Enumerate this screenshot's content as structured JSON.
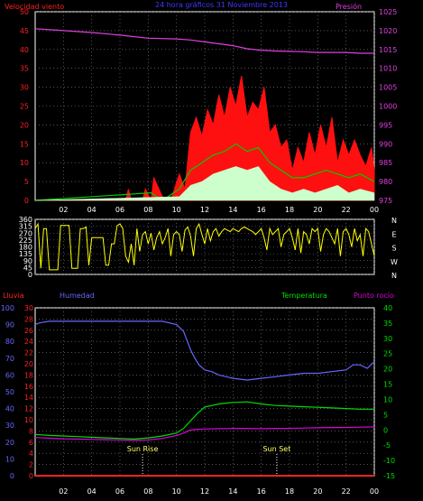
{
  "colors": {
    "wind_label": "#ff2020",
    "pressure_label": "#e040e0",
    "title": "#3b3bff",
    "humidity": "#6666ff",
    "temperature": "#00dd00",
    "dewpoint": "#dd00dd",
    "rain": "#ff2020",
    "direction": "#ffff00",
    "gust": "#ff1010",
    "speed_avg": "#00cc00",
    "speed_min": "#ccffcc",
    "axis": "#ffffff",
    "grid": "#888888"
  },
  "header": {
    "wind_label": "Velocidad viento",
    "title": "24 hora gráficos 31 Noviembre 2013",
    "pressure_label": "Presión"
  },
  "middle_header": {
    "rain_label": "Lluvia",
    "humidity_label": "Humedad",
    "temperature_label": "Temperatura",
    "dewpoint_label": "Punto rocío"
  },
  "x_ticks": [
    "02",
    "04",
    "06",
    "08",
    "10",
    "12",
    "14",
    "16",
    "18",
    "20",
    "22",
    "00"
  ],
  "chart_data": [
    {
      "type": "area",
      "name": "wind-pressure",
      "x_range_hours": [
        0,
        24
      ],
      "ylim_left": [
        0,
        50
      ],
      "yticks_left": [
        0,
        5,
        10,
        15,
        20,
        25,
        30,
        35,
        40,
        45,
        50
      ],
      "ylim_right": [
        975,
        1025
      ],
      "yticks_right": [
        975,
        980,
        985,
        990,
        995,
        1000,
        1005,
        1010,
        1015,
        1020,
        1025
      ],
      "grid": true,
      "series": [
        {
          "name": "Velocidad viento",
          "axis": "left",
          "x": [
            0,
            6.4,
            6.6,
            6.8,
            7.6,
            7.8,
            8.2,
            8.4,
            9.0,
            9.6,
            10.2,
            10.6,
            11.0,
            11.4,
            11.8,
            12.2,
            12.6,
            13.0,
            13.4,
            13.8,
            14.2,
            14.6,
            15.0,
            15.4,
            15.8,
            16.2,
            16.6,
            17.0,
            17.4,
            17.8,
            18.2,
            18.6,
            19.0,
            19.4,
            19.8,
            20.2,
            20.6,
            21.0,
            21.4,
            21.8,
            22.2,
            22.6,
            23.0,
            23.4,
            23.8,
            24.0
          ],
          "y": [
            0,
            0,
            3,
            0,
            0,
            3,
            0,
            6,
            1,
            0,
            7,
            3,
            18,
            22,
            17,
            24,
            20,
            28,
            22,
            30,
            25,
            33,
            22,
            26,
            24,
            30,
            18,
            20,
            14,
            16,
            8,
            14,
            10,
            18,
            12,
            20,
            14,
            22,
            10,
            16,
            12,
            16,
            12,
            9,
            14,
            8
          ]
        },
        {
          "name": "Promedio",
          "axis": "left",
          "x": [
            0,
            8.2,
            9.0,
            10.2,
            11.0,
            11.8,
            12.6,
            13.4,
            14.2,
            15.0,
            15.8,
            16.6,
            17.4,
            18.2,
            19.0,
            19.8,
            20.6,
            21.4,
            22.2,
            23.0,
            24.0
          ],
          "y": [
            0,
            2,
            0,
            3,
            8,
            10,
            12,
            13,
            15,
            13,
            14,
            10,
            8,
            6,
            6,
            7,
            8,
            7,
            6,
            7,
            5
          ]
        },
        {
          "name": "Mínimo",
          "axis": "left",
          "x": [
            0,
            10.2,
            11.0,
            11.8,
            12.6,
            13.4,
            14.2,
            15.0,
            15.8,
            16.6,
            17.4,
            18.2,
            19.0,
            19.8,
            20.6,
            21.4,
            22.2,
            23.0,
            24.0
          ],
          "y": [
            0,
            1,
            4,
            5,
            7,
            8,
            9,
            8,
            9,
            5,
            3,
            2,
            3,
            2,
            3,
            4,
            2,
            3,
            2
          ]
        },
        {
          "name": "Presión",
          "axis": "right",
          "x": [
            0,
            2,
            4,
            6,
            8,
            10,
            11,
            12,
            13,
            14,
            15,
            16,
            17,
            18,
            19,
            20,
            21,
            22,
            23,
            24
          ],
          "y": [
            1020.5,
            1020.0,
            1019.5,
            1018.8,
            1018.0,
            1017.8,
            1017.5,
            1017.0,
            1016.5,
            1016.0,
            1015.2,
            1014.8,
            1014.6,
            1014.5,
            1014.4,
            1014.2,
            1014.2,
            1014.2,
            1014.0,
            1014.0
          ]
        }
      ]
    },
    {
      "type": "line",
      "name": "wind-direction",
      "x_range_hours": [
        0,
        24
      ],
      "ylim": [
        0,
        360
      ],
      "yticks_left": [
        0,
        45,
        90,
        135,
        180,
        225,
        270,
        315,
        360
      ],
      "yticklabels_left": [
        "0",
        "45",
        "90",
        "135",
        "180",
        "225",
        "270",
        "315",
        "360"
      ],
      "yticklabels_right": [
        "N",
        "W",
        "S",
        "E",
        "N"
      ],
      "series": [
        {
          "name": "Dirección",
          "x": [
            0.0,
            0.2,
            0.4,
            0.6,
            0.8,
            1.0,
            1.2,
            1.4,
            1.6,
            1.8,
            2.0,
            2.2,
            2.4,
            2.6,
            2.8,
            3.0,
            3.2,
            3.4,
            3.6,
            3.8,
            4.0,
            4.2,
            4.4,
            4.6,
            4.8,
            5.0,
            5.2,
            5.4,
            5.6,
            5.8,
            6.0,
            6.2,
            6.4,
            6.6,
            6.8,
            7.0,
            7.2,
            7.4,
            7.6,
            7.8,
            8.0,
            8.2,
            8.4,
            8.6,
            8.8,
            9.0,
            9.2,
            9.4,
            9.6,
            9.8,
            10.0,
            10.2,
            10.4,
            10.6,
            10.8,
            11.0,
            11.2,
            11.4,
            11.6,
            11.8,
            12.0,
            12.2,
            12.4,
            12.6,
            12.8,
            13.0,
            13.2,
            13.4,
            13.6,
            13.8,
            14.0,
            14.2,
            14.4,
            14.6,
            14.8,
            15.0,
            15.2,
            15.4,
            15.6,
            15.8,
            16.0,
            16.2,
            16.4,
            16.6,
            16.8,
            17.0,
            17.2,
            17.4,
            17.6,
            17.8,
            18.0,
            18.2,
            18.4,
            18.6,
            18.8,
            19.0,
            19.2,
            19.4,
            19.6,
            19.8,
            20.0,
            20.2,
            20.4,
            20.6,
            20.8,
            21.0,
            21.2,
            21.4,
            21.6,
            21.8,
            22.0,
            22.2,
            22.4,
            22.6,
            22.8,
            23.0,
            23.2,
            23.4,
            23.6,
            23.8,
            24.0
          ],
          "y": [
            300,
            330,
            40,
            300,
            300,
            30,
            30,
            30,
            30,
            320,
            320,
            320,
            320,
            40,
            40,
            40,
            300,
            300,
            310,
            60,
            240,
            240,
            240,
            240,
            240,
            60,
            60,
            200,
            200,
            320,
            330,
            300,
            120,
            80,
            200,
            60,
            300,
            150,
            260,
            280,
            200,
            270,
            160,
            240,
            280,
            200,
            240,
            300,
            120,
            260,
            280,
            260,
            150,
            290,
            310,
            250,
            120,
            300,
            330,
            260,
            200,
            300,
            220,
            280,
            300,
            250,
            280,
            300,
            290,
            280,
            300,
            290,
            280,
            300,
            310,
            300,
            290,
            280,
            260,
            280,
            300,
            240,
            160,
            300,
            260,
            280,
            300,
            180,
            260,
            280,
            300,
            240,
            160,
            300,
            140,
            280,
            260,
            200,
            300,
            280,
            300,
            150,
            260,
            300,
            280,
            240,
            200,
            300,
            120,
            280,
            300,
            260,
            180,
            300,
            220,
            260,
            120,
            300,
            280,
            200,
            120
          ]
        }
      ]
    },
    {
      "type": "line",
      "name": "rain-humidity-temperature",
      "x_range_hours": [
        0,
        24
      ],
      "ylim_rain": [
        0,
        30
      ],
      "yticks_rain": [
        0,
        2,
        4,
        6,
        8,
        10,
        12,
        14,
        16,
        18,
        20,
        22,
        24,
        26,
        28,
        30
      ],
      "ylim_humidity": [
        0,
        100
      ],
      "yticks_humidity": [
        0,
        10,
        20,
        30,
        40,
        50,
        60,
        70,
        80,
        90,
        100
      ],
      "ylim_temperature": [
        -15,
        40
      ],
      "yticks_temperature": [
        -15,
        -10,
        -5,
        0,
        5,
        10,
        15,
        20,
        25,
        30,
        35,
        40
      ],
      "annotations": [
        {
          "text": "Sun Rise",
          "x": 7.6
        },
        {
          "text": "Sun Set",
          "x": 17.1
        }
      ],
      "series": [
        {
          "name": "Humedad",
          "axis": "humidity",
          "x": [
            0,
            0.3,
            1,
            2,
            3,
            4,
            5,
            6,
            7,
            8,
            9,
            10,
            10.5,
            11.0,
            11.3,
            11.6,
            12.0,
            12.5,
            13,
            14,
            15,
            16,
            17,
            18,
            19,
            20,
            21,
            22,
            22.5,
            23,
            23.5,
            24
          ],
          "y": [
            90,
            91,
            92,
            92,
            92,
            92,
            92,
            92,
            92,
            92,
            92,
            90,
            86,
            75,
            70,
            66,
            63,
            62,
            60,
            58,
            57,
            58,
            59,
            60,
            61,
            61,
            62,
            63,
            66,
            66,
            64,
            68
          ]
        },
        {
          "name": "Temperatura",
          "axis": "temperature",
          "x": [
            0,
            1,
            2,
            3,
            4,
            5,
            6,
            7,
            8,
            9,
            10,
            10.5,
            11.0,
            11.5,
            12,
            13,
            14,
            15,
            16,
            17,
            18,
            19,
            20,
            21,
            22,
            23,
            24
          ],
          "y": [
            -1.5,
            -1.8,
            -2.0,
            -2.2,
            -2.4,
            -2.6,
            -2.8,
            -3.0,
            -2.6,
            -2.0,
            -1.0,
            0.5,
            3.0,
            5.5,
            7.5,
            8.5,
            9.0,
            9.2,
            8.5,
            8.0,
            7.8,
            7.6,
            7.4,
            7.2,
            7.0,
            6.8,
            6.8
          ]
        },
        {
          "name": "Punto rocío",
          "axis": "temperature",
          "x": [
            0,
            1,
            2,
            3,
            4,
            5,
            6,
            7,
            8,
            9,
            10,
            10.5,
            11.0,
            11.5,
            12,
            13,
            14,
            15,
            16,
            17,
            18,
            19,
            20,
            21,
            22,
            23,
            24
          ],
          "y": [
            -2.5,
            -2.7,
            -2.9,
            -3.0,
            -3.1,
            -3.2,
            -3.3,
            -3.4,
            -3.3,
            -2.8,
            -1.8,
            -1.0,
            0.0,
            0.2,
            0.3,
            0.4,
            0.5,
            0.5,
            0.4,
            0.5,
            0.5,
            0.6,
            0.7,
            0.8,
            0.8,
            0.9,
            1.0
          ]
        },
        {
          "name": "Lluvia",
          "axis": "rain",
          "x": [
            0,
            24
          ],
          "y": [
            0,
            0
          ]
        }
      ]
    }
  ]
}
